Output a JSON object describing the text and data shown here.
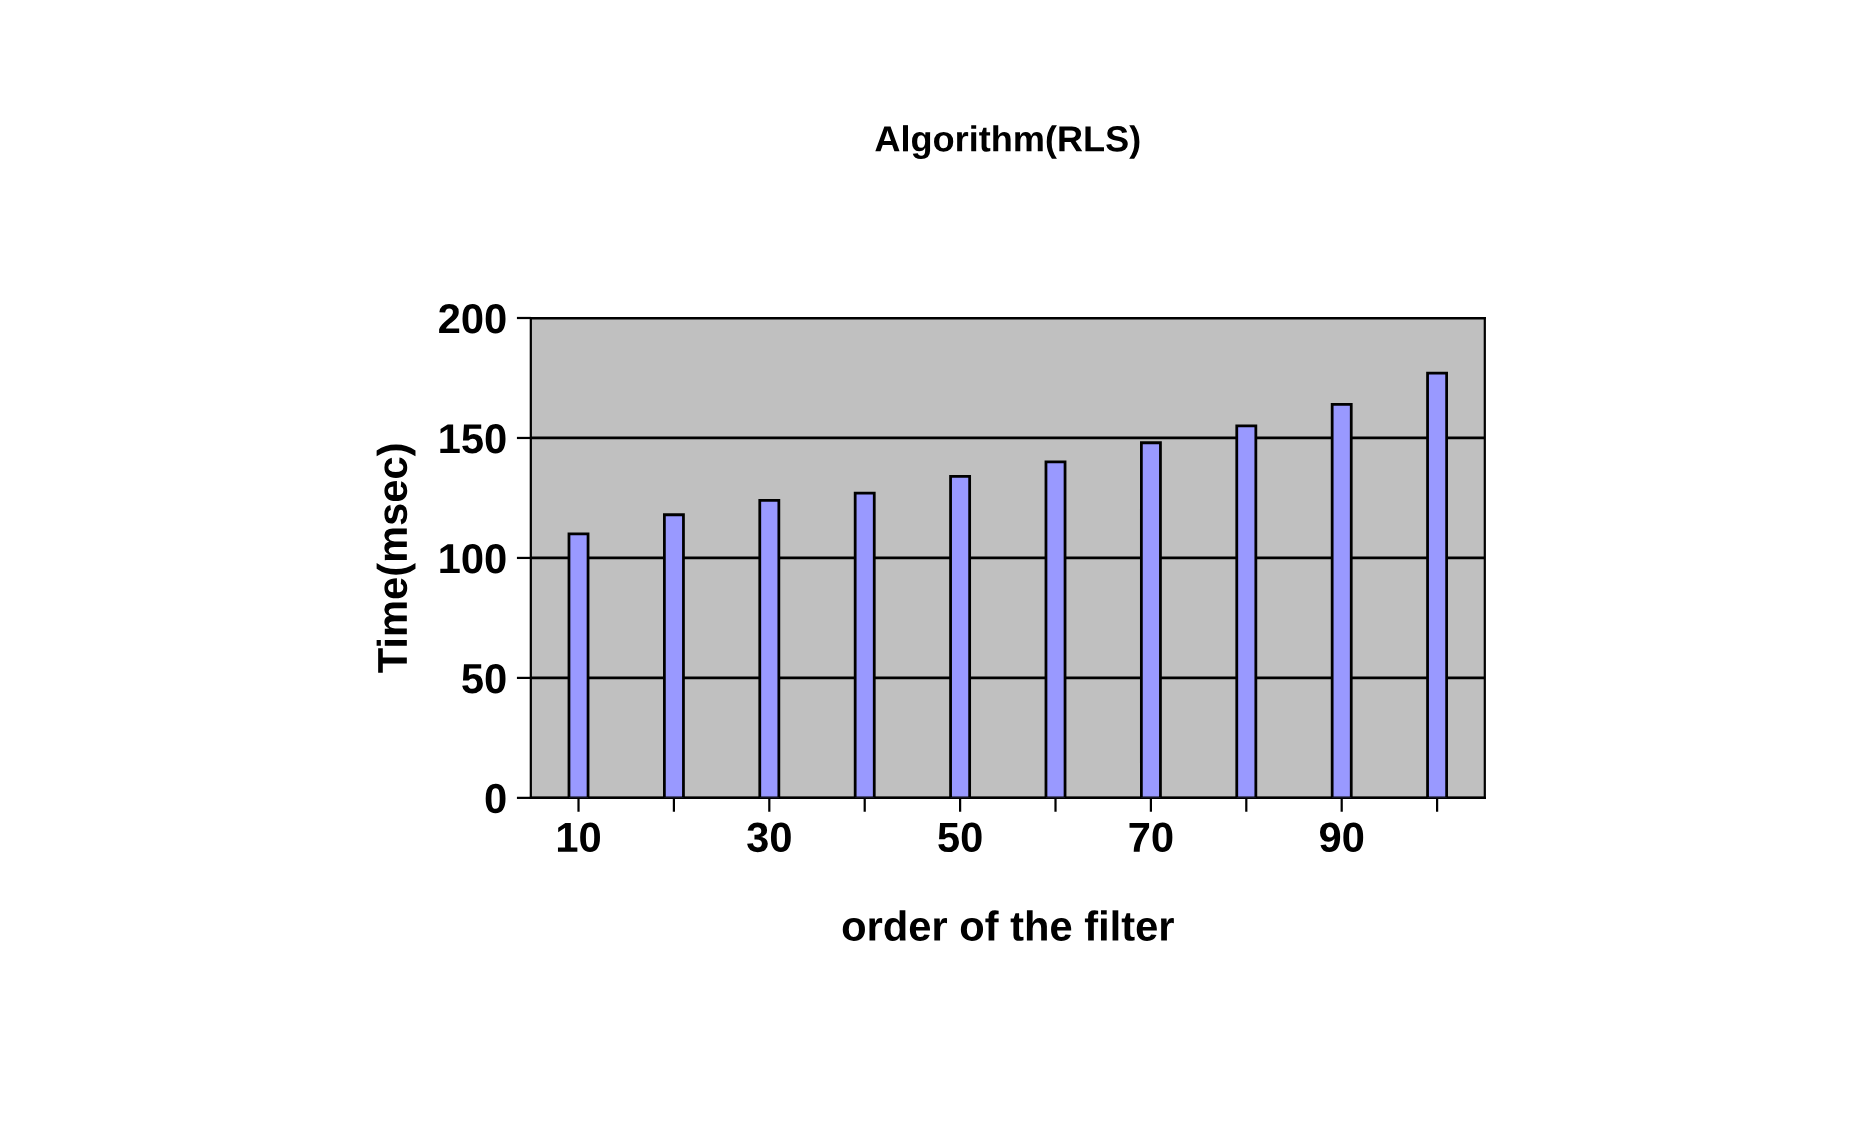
{
  "chart_data": {
    "type": "bar",
    "title": "Algorithm(RLS)",
    "xlabel": "order of the filter",
    "ylabel": "Time(msec)",
    "categories": [
      "10",
      null,
      "30",
      null,
      "50",
      null,
      "70",
      null,
      "90",
      null
    ],
    "values": [
      110,
      118,
      124,
      127,
      134,
      140,
      148,
      155,
      164,
      177
    ],
    "color": "#9999ff",
    "ylim": [
      0,
      200
    ],
    "yticks": [
      0,
      50,
      100,
      150,
      200
    ],
    "grid": "y",
    "legend": false
  }
}
